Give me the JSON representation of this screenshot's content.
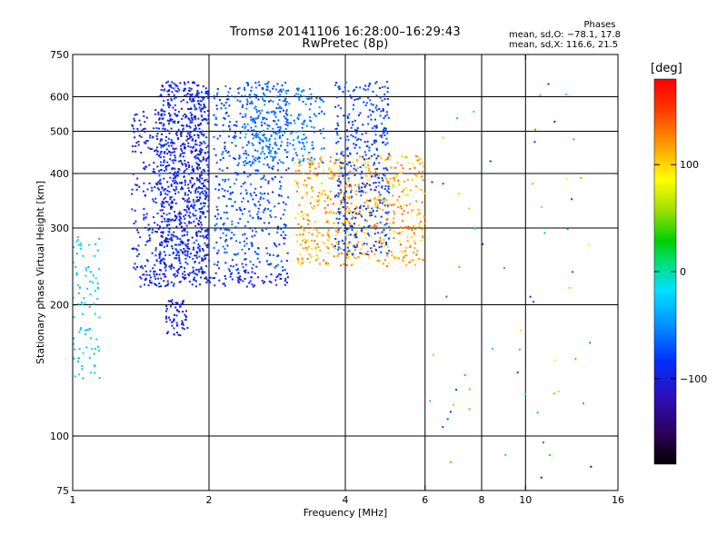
{
  "header": {
    "title": "Tromsø 20141106 16:28:00–16:29:43",
    "subtitle": "RwPretec (8p)",
    "stats": {
      "title": "Phases",
      "line_o": "mean, sd,O: −78.1, 17.8",
      "line_x": "mean, sd,X: 116.6, 21.5"
    }
  },
  "colorbar": {
    "label": "[deg]",
    "ticks": [
      {
        "value": 100,
        "label": "100"
      },
      {
        "value": 0,
        "label": "0"
      },
      {
        "value": -100,
        "label": "−100"
      }
    ],
    "range": [
      -180,
      180
    ]
  },
  "chart_data": {
    "type": "scatter",
    "title": "Tromsø 20141106 16:28:00–16:29:43",
    "subtitle": "RwPretec (8p)",
    "xlabel": "Frequency [MHz]",
    "ylabel": "Stationary phase Virtual Height [km]",
    "x_scale": "log",
    "y_scale": "log",
    "xlim": [
      1,
      16
    ],
    "ylim": [
      75,
      750
    ],
    "x_ticks": [
      {
        "value": 1,
        "label": "1"
      },
      {
        "value": 2,
        "label": "2"
      },
      {
        "value": 4,
        "label": "4"
      },
      {
        "value": 6,
        "label": "6"
      },
      {
        "value": 8,
        "label": "8"
      },
      {
        "value": 10,
        "label": "10"
      },
      {
        "value": 16,
        "label": "16"
      }
    ],
    "y_ticks": [
      {
        "value": 75,
        "label": "75"
      },
      {
        "value": 100,
        "label": "100"
      },
      {
        "value": 200,
        "label": "200"
      },
      {
        "value": 300,
        "label": "300"
      },
      {
        "value": 400,
        "label": "400"
      },
      {
        "value": 500,
        "label": "500"
      },
      {
        "value": 600,
        "label": "600"
      },
      {
        "value": 750,
        "label": "750"
      }
    ],
    "x_grid": [
      2,
      4,
      6,
      8,
      10
    ],
    "y_grid": [
      100,
      200,
      300,
      400,
      500,
      600
    ],
    "color_by": "phase_deg",
    "clusters": [
      {
        "name_hint": "low-frequency cyan trace",
        "f": [
          1.0,
          1.15
        ],
        "h": [
          135,
          290
        ],
        "phase": [
          -40,
          -20
        ],
        "n": 90
      },
      {
        "name_hint": "E/F1 trace base",
        "f": [
          1.4,
          3.0
        ],
        "h": [
          220,
          240
        ],
        "phase": [
          -110,
          -90
        ],
        "n": 160
      },
      {
        "name_hint": "F-layer echoes 1.6-2.0 MHz",
        "f": [
          1.55,
          2.0
        ],
        "h": [
          240,
          650
        ],
        "phase": [
          -120,
          -80
        ],
        "n": 900
      },
      {
        "name_hint": "spread echoes 1.4-1.6 MHz",
        "f": [
          1.35,
          1.6
        ],
        "h": [
          240,
          560
        ],
        "phase": [
          -115,
          -85
        ],
        "n": 180
      },
      {
        "name_hint": "lower cluster 1.6-1.8 MHz",
        "f": [
          1.6,
          1.8
        ],
        "h": [
          170,
          205
        ],
        "phase": [
          -115,
          -95
        ],
        "n": 60
      },
      {
        "name_hint": "F-layer echoes 2-3 MHz",
        "f": [
          2.05,
          3.0
        ],
        "h": [
          240,
          650
        ],
        "phase": [
          -100,
          -60
        ],
        "n": 500
      },
      {
        "name_hint": "upper band 2.4-3.6 MHz",
        "f": [
          2.4,
          3.6
        ],
        "h": [
          420,
          630
        ],
        "phase": [
          -80,
          -40
        ],
        "n": 250
      },
      {
        "name_hint": "X-mode trace 3-6 MHz",
        "f": [
          3.1,
          6.0
        ],
        "h": [
          245,
          440
        ],
        "phase": [
          90,
          140
        ],
        "n": 600
      },
      {
        "name_hint": "O-mode trace 3.8-5.0 MHz",
        "f": [
          3.8,
          5.0
        ],
        "h": [
          260,
          650
        ],
        "phase": [
          -100,
          -70
        ],
        "n": 400
      },
      {
        "name_hint": "sparse noise",
        "f": [
          6.0,
          14.0
        ],
        "h": [
          80,
          650
        ],
        "phase": [
          -120,
          140
        ],
        "n": 60
      }
    ]
  }
}
